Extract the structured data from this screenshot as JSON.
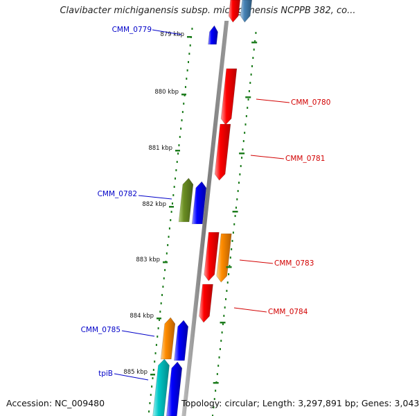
{
  "title": "Clavibacter michiganensis subsp. michiganensis NCPPB 382, co...",
  "footer": {
    "accession": "Accession: NC_009480",
    "topology": "Topology: circular; Length: 3,297,891 bp; Genes: 3,043"
  },
  "colors": {
    "backbone": "#8a8a8a",
    "tick": "#1e7d1e",
    "forward_label": "#0000c8",
    "reverse_label": "#d20000",
    "red": "#ff0000",
    "blue": "#0000ff",
    "orange": "#ff8c00",
    "olive": "#6b8e23",
    "cyan": "#00c8c8",
    "steelblue": "#4682b4"
  },
  "kbp_labels": [
    "879 kbp",
    "880 kbp",
    "881 kbp",
    "882 kbp",
    "883 kbp",
    "884 kbp",
    "885 kbp"
  ],
  "gene_labels": [
    {
      "text": "CMM_0779",
      "strand": "forward"
    },
    {
      "text": "CMM_0780",
      "strand": "reverse"
    },
    {
      "text": "CMM_0781",
      "strand": "reverse"
    },
    {
      "text": "CMM_0782",
      "strand": "forward"
    },
    {
      "text": "CMM_0783",
      "strand": "reverse"
    },
    {
      "text": "CMM_0784",
      "strand": "reverse"
    },
    {
      "text": "CMM_0785",
      "strand": "forward"
    },
    {
      "text": "tpiB",
      "strand": "forward"
    }
  ],
  "features": [
    {
      "color": "blue",
      "strand": "forward"
    },
    {
      "color": "red",
      "strand": "reverse"
    },
    {
      "color": "red",
      "strand": "reverse"
    },
    {
      "color": "olive",
      "strand": "forward"
    },
    {
      "color": "blue",
      "strand": "forward"
    },
    {
      "color": "red",
      "strand": "reverse"
    },
    {
      "color": "orange",
      "strand": "reverse"
    },
    {
      "color": "red",
      "strand": "reverse"
    },
    {
      "color": "orange",
      "strand": "forward"
    },
    {
      "color": "blue",
      "strand": "forward"
    },
    {
      "color": "cyan",
      "strand": "forward"
    },
    {
      "color": "blue",
      "strand": "forward"
    },
    {
      "color": "red",
      "strand": "reverse"
    },
    {
      "color": "steelblue",
      "strand": "reverse"
    }
  ]
}
